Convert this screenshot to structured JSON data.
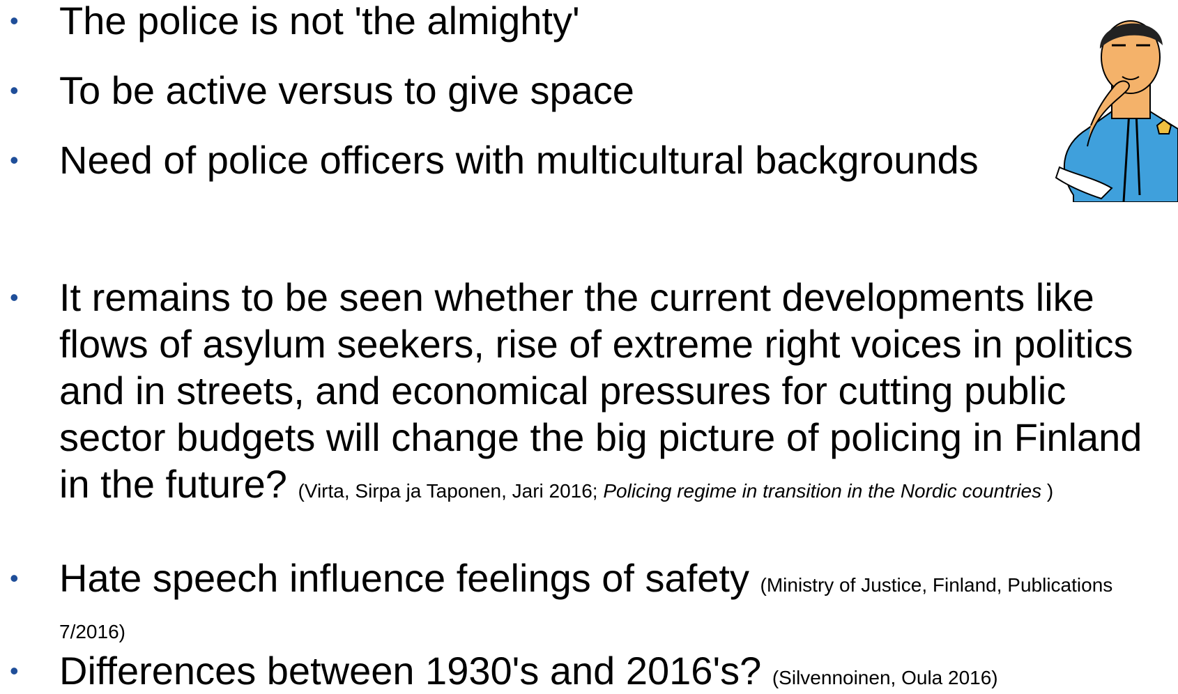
{
  "bullets": [
    {
      "text": "The police is not 'the almighty'"
    },
    {
      "text": "To be active versus to give space"
    },
    {
      "text": "Need of police officers with multicultural backgrounds"
    },
    {
      "text": "It remains to be seen whether the current developments like flows of asylum seekers, rise of extreme right voices in politics and in streets, and economical pressures for cutting public sector budgets will change the big picture of policing in Finland in the future?",
      "citation": "(Virta, Sirpa ja Taponen, Jari 2016;",
      "citation_title": "Policing regime in transition in the Nordic countries",
      "citation_end": ")"
    },
    {
      "text": "Hate speech influence feelings of safety",
      "citation": "(Ministry of Justice, Finland, Publications 7/2016)"
    },
    {
      "text": "Differences between 1930's and 2016's?",
      "citation": "(Silvennoinen, Oula 2016)"
    }
  ],
  "bullet_symbol": "•"
}
